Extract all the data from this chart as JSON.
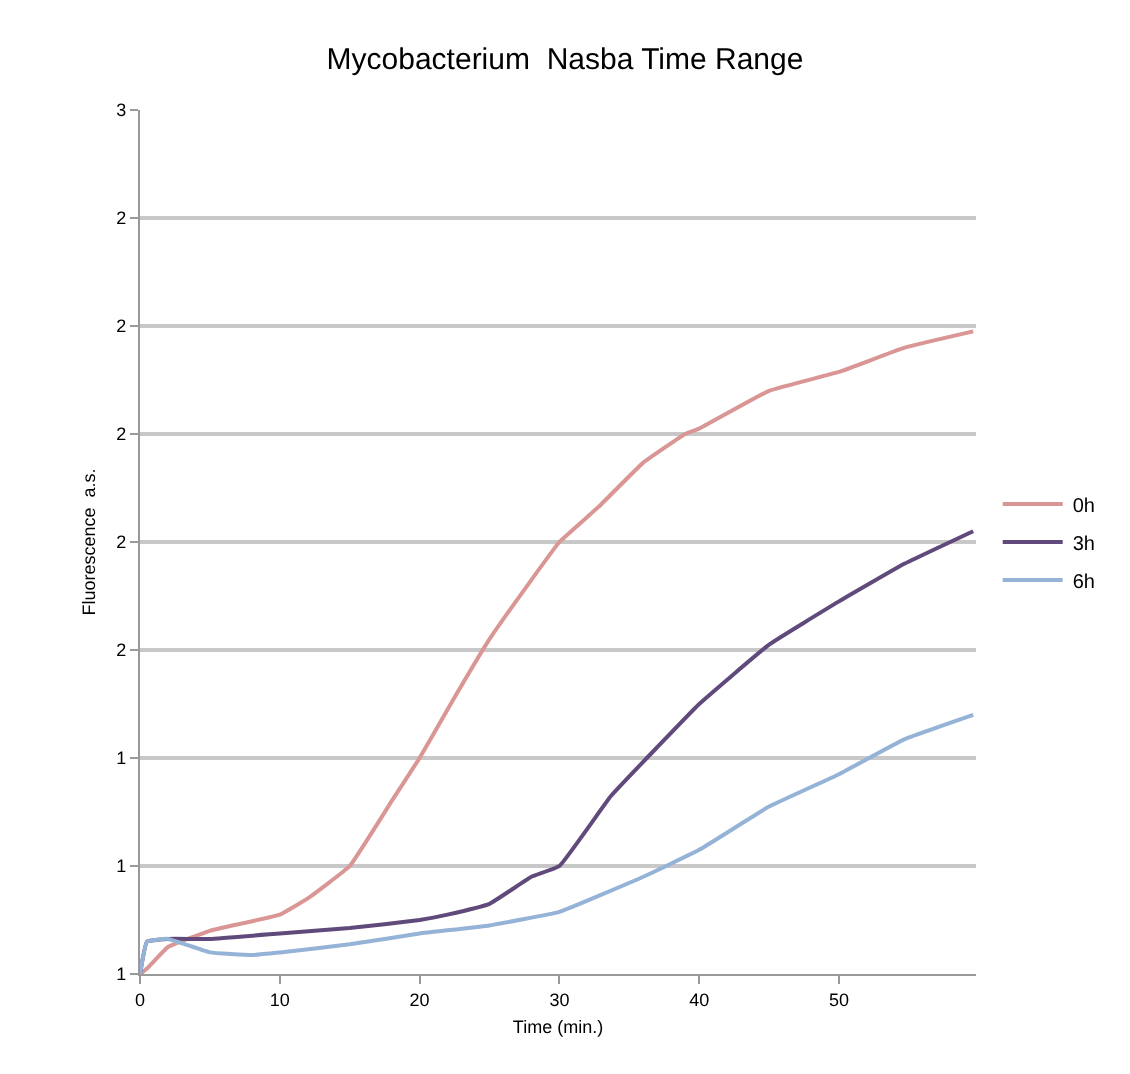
{
  "chart_data": {
    "type": "line",
    "title": "Mycobacterium  Nasba Time Range",
    "xlabel": "Time (min.)",
    "ylabel": "Fluorescence  a.s.",
    "xlim": [
      0,
      59.8
    ],
    "xticks": [
      0,
      10,
      20,
      30,
      40,
      50
    ],
    "ylim": [
      1,
      2.6
    ],
    "yticks": [
      {
        "value": 1,
        "label": "1"
      },
      {
        "value": 1.2,
        "label": "1"
      },
      {
        "value": 1.4,
        "label": "1"
      },
      {
        "value": 1.6,
        "label": "2"
      },
      {
        "value": 1.8,
        "label": "2"
      },
      {
        "value": 2,
        "label": "2"
      },
      {
        "value": 2.2,
        "label": "2"
      },
      {
        "value": 2.4,
        "label": "2"
      },
      {
        "value": 2.6,
        "label": "3"
      }
    ],
    "grid": "y",
    "legend": "right",
    "marker": "none",
    "line_style": "solid",
    "series": [
      {
        "name": "0h",
        "color": "#d99694",
        "x": [
          0,
          0.5,
          2,
          5,
          10,
          12,
          15,
          18,
          20,
          22,
          25,
          28,
          30,
          32.8,
          36,
          39,
          40,
          45,
          50,
          54.7,
          59.6
        ],
        "values": [
          1,
          1.01,
          1.05,
          1.08,
          1.11,
          1.14,
          1.2,
          1.32,
          1.4,
          1.49,
          1.62,
          1.73,
          1.8,
          1.865,
          1.947,
          2,
          2.01,
          2.08,
          2.115,
          2.16,
          2.19
        ]
      },
      {
        "name": "3h",
        "color": "#604a7b",
        "x": [
          0,
          0.5,
          2,
          5,
          10,
          15,
          20,
          22,
          25,
          28,
          30,
          33.7,
          37,
          40,
          45,
          50,
          54.7,
          59.6
        ],
        "values": [
          1,
          1.06,
          1.065,
          1.065,
          1.075,
          1.085,
          1.1,
          1.11,
          1.13,
          1.18,
          1.2,
          1.33,
          1.42,
          1.5,
          1.61,
          1.69,
          1.76,
          1.82
        ]
      },
      {
        "name": "6h",
        "color": "#95b3d7",
        "x": [
          0,
          0.5,
          2,
          5,
          8,
          10,
          15,
          20,
          25,
          30,
          36,
          40,
          45,
          50,
          54.7,
          59.6
        ],
        "values": [
          1,
          1.06,
          1.065,
          1.04,
          1.035,
          1.04,
          1.055,
          1.075,
          1.09,
          1.115,
          1.18,
          1.23,
          1.31,
          1.37,
          1.435,
          1.48
        ]
      }
    ]
  }
}
